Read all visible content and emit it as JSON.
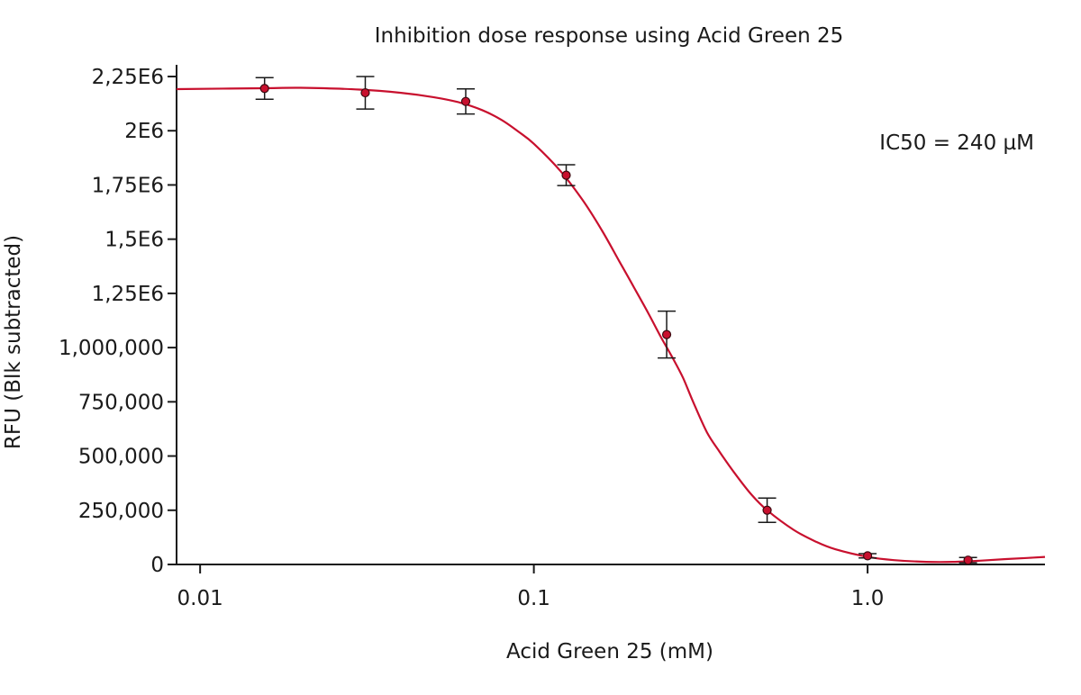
{
  "chart_data": {
    "type": "scatter",
    "title": "Inhibition dose response using Acid Green 25",
    "xlabel": "Acid Green 25 (mM)",
    "ylabel": "RFU (Blk subtracted)",
    "annotation": "IC50 = 240 µM",
    "x_scale": "log",
    "xlim": [
      0.0085,
      3.4
    ],
    "ylim": [
      0,
      2250000
    ],
    "x_ticks": [
      {
        "value": 0.01,
        "label": "0.01"
      },
      {
        "value": 0.1,
        "label": "0.1"
      },
      {
        "value": 1.0,
        "label": "1.0"
      }
    ],
    "y_ticks": [
      {
        "value": 0,
        "label": "0"
      },
      {
        "value": 250000,
        "label": "250,000"
      },
      {
        "value": 500000,
        "label": "500,000"
      },
      {
        "value": 750000,
        "label": "750,000"
      },
      {
        "value": 1000000,
        "label": "1,000,000"
      },
      {
        "value": 1250000,
        "label": "1,25E6"
      },
      {
        "value": 1500000,
        "label": "1,5E6"
      },
      {
        "value": 1750000,
        "label": "1,75E6"
      },
      {
        "value": 2000000,
        "label": "2E6"
      },
      {
        "value": 2250000,
        "label": "2,25E6"
      }
    ],
    "points": [
      {
        "x": 0.0156,
        "y": 2195000,
        "err": 50000
      },
      {
        "x": 0.03125,
        "y": 2175000,
        "err": 75000
      },
      {
        "x": 0.0625,
        "y": 2135000,
        "err": 58000
      },
      {
        "x": 0.125,
        "y": 1795000,
        "err": 48000
      },
      {
        "x": 0.25,
        "y": 1060000,
        "err": 108000
      },
      {
        "x": 0.5,
        "y": 250000,
        "err": 56000
      },
      {
        "x": 1.0,
        "y": 40000,
        "err": 10000
      },
      {
        "x": 2.0,
        "y": 20000,
        "err": 12000
      }
    ],
    "fit_curve": [
      {
        "x": 0.0085,
        "y": 2192000
      },
      {
        "x": 0.0156,
        "y": 2196000
      },
      {
        "x": 0.02,
        "y": 2198000
      },
      {
        "x": 0.03,
        "y": 2190000
      },
      {
        "x": 0.04,
        "y": 2175000
      },
      {
        "x": 0.05,
        "y": 2155000
      },
      {
        "x": 0.06,
        "y": 2130000
      },
      {
        "x": 0.07,
        "y": 2095000
      },
      {
        "x": 0.08,
        "y": 2050000
      },
      {
        "x": 0.09,
        "y": 1995000
      },
      {
        "x": 0.1,
        "y": 1940000
      },
      {
        "x": 0.12,
        "y": 1815000
      },
      {
        "x": 0.14,
        "y": 1680000
      },
      {
        "x": 0.16,
        "y": 1540000
      },
      {
        "x": 0.18,
        "y": 1400000
      },
      {
        "x": 0.2,
        "y": 1275000
      },
      {
        "x": 0.22,
        "y": 1160000
      },
      {
        "x": 0.24,
        "y": 1050000
      },
      {
        "x": 0.26,
        "y": 955000
      },
      {
        "x": 0.28,
        "y": 860000
      },
      {
        "x": 0.3,
        "y": 750000
      },
      {
        "x": 0.33,
        "y": 610000
      },
      {
        "x": 0.36,
        "y": 520000
      },
      {
        "x": 0.4,
        "y": 420000
      },
      {
        "x": 0.45,
        "y": 320000
      },
      {
        "x": 0.5,
        "y": 250000
      },
      {
        "x": 0.6,
        "y": 160000
      },
      {
        "x": 0.7,
        "y": 105000
      },
      {
        "x": 0.8,
        "y": 70000
      },
      {
        "x": 1.0,
        "y": 35000
      },
      {
        "x": 1.2,
        "y": 20000
      },
      {
        "x": 1.5,
        "y": 12000
      },
      {
        "x": 1.8,
        "y": 12000
      },
      {
        "x": 2.2,
        "y": 18000
      },
      {
        "x": 2.6,
        "y": 25000
      },
      {
        "x": 3.0,
        "y": 30000
      },
      {
        "x": 3.4,
        "y": 35000
      }
    ],
    "grid": false,
    "legend": "none",
    "colors": {
      "curve": "#c8102e",
      "marker_fill": "#c8102e",
      "marker_stroke": "#3a0a10",
      "axis": "#1a1a1a",
      "error_bar": "#1a1a1a"
    }
  }
}
